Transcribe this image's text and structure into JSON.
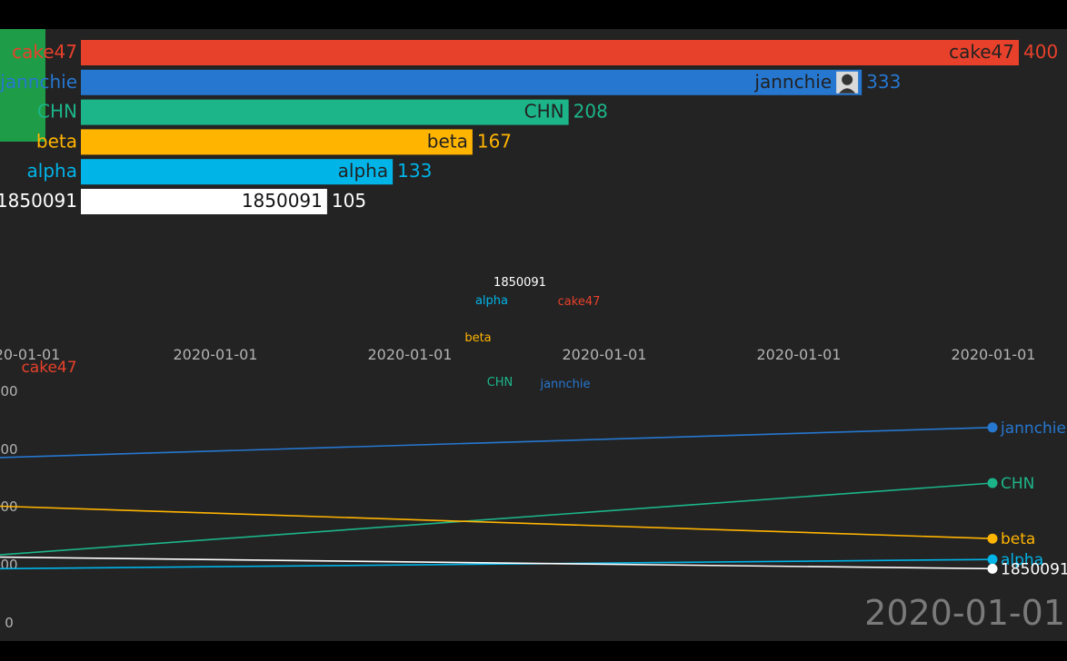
{
  "colors": {
    "cake47": "#e8412b",
    "jannchie": "#2677d0",
    "CHN": "#1cb589",
    "beta": "#ffb400",
    "alpha": "#00b4e8",
    "1850091": "#ffffff",
    "background": "#232323",
    "axis_text": "#b3b3b3",
    "date_text": "#7a7a7a"
  },
  "chart_data": [
    {
      "type": "bar",
      "orientation": "horizontal",
      "categories": [
        "cake47",
        "jannchie",
        "CHN",
        "beta",
        "alpha",
        "1850091"
      ],
      "values": [
        400,
        333,
        208,
        167,
        133,
        105
      ],
      "value_labels": [
        "400",
        "333",
        "208",
        "167",
        "133",
        "105"
      ],
      "xlim": [
        0,
        400
      ],
      "avatar_on": "jannchie"
    },
    {
      "type": "line",
      "x_tick_labels": [
        "20-01-01",
        "2020-01-01",
        "2020-01-01",
        "2020-01-01",
        "2020-01-01",
        "2020-01-01"
      ],
      "y_tick_labels": [
        "00",
        "00",
        "00",
        "00",
        "0"
      ],
      "series": [
        {
          "name": "jannchie",
          "start": 0.71,
          "end": 0.84
        },
        {
          "name": "CHN",
          "start": 0.29,
          "end": 0.6
        },
        {
          "name": "beta",
          "start": 0.5,
          "end": 0.36
        },
        {
          "name": "alpha",
          "start": 0.23,
          "end": 0.27
        },
        {
          "name": "1850091",
          "start": 0.28,
          "end": 0.23
        }
      ],
      "scatter_labels": [
        {
          "text": "1850091",
          "series": "1850091"
        },
        {
          "text": "alpha",
          "series": "alpha"
        },
        {
          "text": "cake47",
          "series": "cake47"
        },
        {
          "text": "beta",
          "series": "beta"
        },
        {
          "text": "CHN",
          "series": "CHN"
        },
        {
          "text": "jannchie",
          "series": "jannchie"
        },
        {
          "text": "cake47",
          "series": "cake47"
        }
      ]
    }
  ],
  "current_date": "2020-01-01"
}
